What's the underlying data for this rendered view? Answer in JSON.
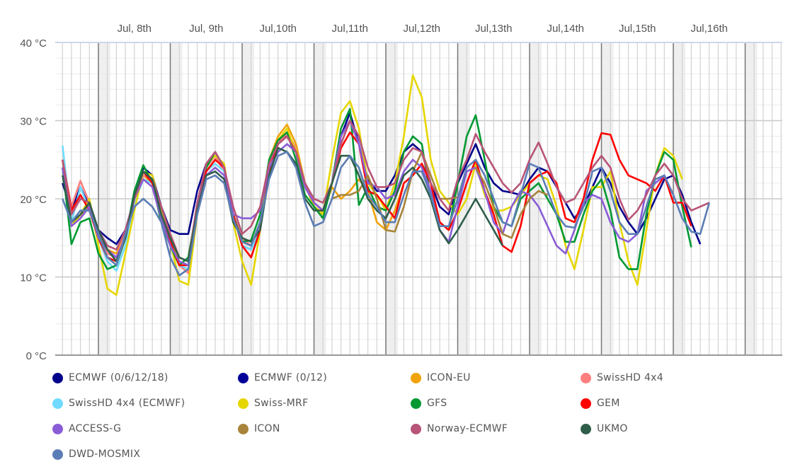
{
  "chart_data": {
    "type": "line",
    "title": "",
    "xlabel": "",
    "ylabel": "",
    "y_unit": "°C",
    "ylim": [
      0,
      40
    ],
    "y_ticks": [
      {
        "value": 0,
        "label": "0 °C"
      },
      {
        "value": 10,
        "label": "10 °C"
      },
      {
        "value": 20,
        "label": "20 °C"
      },
      {
        "value": 30,
        "label": "30 °C"
      },
      {
        "value": 40,
        "label": "40 °C"
      }
    ],
    "x_unit": "hours since Jul 8 00:00",
    "xlim": [
      -12,
      240
    ],
    "x_day_labels": [
      {
        "hour": 12,
        "label": "Jul, 8th"
      },
      {
        "hour": 36,
        "label": "Jul, 9th"
      },
      {
        "hour": 60,
        "label": "Jul,10th"
      },
      {
        "hour": 84,
        "label": "Jul,11th"
      },
      {
        "hour": 108,
        "label": "Jul,12th"
      },
      {
        "hour": 132,
        "label": "Jul,13th"
      },
      {
        "hour": 156,
        "label": "Jul,14th"
      },
      {
        "hour": 180,
        "label": "Jul,15th"
      },
      {
        "hour": 204,
        "label": "Jul,16th"
      }
    ],
    "grid": true,
    "legend_position": "bottom",
    "x": [
      -12,
      -9,
      -6,
      -3,
      0,
      3,
      6,
      9,
      12,
      15,
      18,
      21,
      24,
      27,
      30,
      33,
      36,
      39,
      42,
      45,
      48,
      51,
      54,
      57,
      60,
      63,
      66,
      69,
      72,
      75,
      78,
      81,
      84,
      87,
      90,
      93,
      96,
      99,
      102,
      105,
      108,
      111,
      114,
      117,
      120,
      123,
      126,
      129,
      132,
      135,
      138,
      141,
      144,
      147,
      150,
      153,
      156,
      159,
      162,
      165,
      168,
      171,
      174,
      177,
      180,
      183,
      186,
      189,
      192,
      195,
      198,
      201,
      204,
      207,
      210,
      213,
      216,
      219,
      222,
      225,
      228
    ],
    "series": [
      {
        "name": "ECMWF (0/6/12/18)",
        "color": "#00008b",
        "values": [
          22,
          18.5,
          21.5,
          19,
          16,
          15,
          14.2,
          16,
          20,
          24,
          23,
          19,
          16,
          15.5,
          15.5,
          21,
          24.5,
          25.5,
          23.5,
          18,
          14,
          13.5,
          17,
          24,
          27.5,
          28,
          26,
          22,
          19,
          18,
          22,
          28,
          31,
          27,
          22.5,
          21,
          21,
          23,
          26,
          27,
          26,
          22,
          19,
          18,
          22,
          24.5,
          27,
          24,
          22,
          21,
          20.8,
          20.5,
          22.5,
          24,
          23.5,
          21.5,
          19.5,
          17.5,
          19,
          21.5,
          24,
          22,
          19,
          17,
          15.5,
          17.5,
          20,
          22.5,
          23,
          20.5,
          17,
          14.2,
          null,
          null,
          null,
          null,
          null,
          null,
          null,
          null,
          null
        ]
      },
      {
        "name": "ECMWF (0/12)",
        "color": "#000099",
        "values": [
          null,
          null,
          null,
          null,
          null,
          null,
          null,
          null,
          null,
          null,
          null,
          null,
          null,
          null,
          null,
          null,
          null,
          null,
          null,
          null,
          null,
          null,
          null,
          null,
          null,
          null,
          null,
          null,
          null,
          null,
          null,
          null,
          null,
          null,
          null,
          null,
          null,
          null,
          null,
          null,
          null,
          null,
          null,
          null,
          null,
          null,
          null,
          null,
          null,
          null,
          null,
          null,
          null,
          null,
          null,
          null,
          null,
          null,
          null,
          null,
          null,
          null,
          null,
          null,
          null,
          null,
          null,
          null,
          null,
          null,
          null,
          null,
          null,
          null,
          null,
          null,
          null,
          null,
          null,
          null,
          null
        ]
      },
      {
        "name": "ICON-EU",
        "color": "#f0a30a",
        "values": [
          24,
          17,
          17.5,
          19.5,
          15.5,
          13.5,
          13,
          15.5,
          20,
          23,
          22,
          18,
          15,
          12,
          11.5,
          19,
          24,
          25.5,
          24,
          18,
          14.5,
          14,
          17,
          25,
          28,
          29.5,
          27,
          22,
          19,
          18.2,
          21.5,
          20,
          21,
          22.5,
          21,
          17,
          16,
          18.5,
          22,
          null,
          null,
          null,
          null,
          null,
          null,
          null,
          null,
          null,
          null,
          null,
          null,
          null,
          null,
          null,
          null,
          null,
          null,
          null,
          null,
          null,
          null,
          null,
          null,
          null,
          null,
          null,
          null,
          null,
          null,
          null,
          null,
          null,
          null,
          null,
          null,
          null,
          null,
          null,
          null,
          null,
          null
        ]
      },
      {
        "name": "SwissHD 4x4",
        "color": "#ff7f7f",
        "values": [
          25,
          19,
          22.3,
          19.5,
          15.5,
          13,
          12.5,
          15.5,
          19,
          23,
          22.5,
          18,
          14.5,
          11.5,
          10.5,
          19,
          24,
          25.5,
          23.5,
          18,
          15,
          14,
          16,
          24,
          27,
          28.5,
          26.5,
          null,
          null,
          null,
          null,
          null,
          null,
          null,
          null,
          null,
          null,
          null,
          null,
          null,
          null,
          null,
          null,
          null,
          null,
          null,
          null,
          null,
          null,
          null,
          null,
          null,
          null,
          null,
          null,
          null,
          null,
          null,
          null,
          null,
          null,
          null,
          null,
          null,
          null,
          null,
          null,
          null,
          null,
          null,
          null,
          null,
          null,
          null,
          null,
          null,
          null,
          null,
          null,
          null,
          null
        ]
      },
      {
        "name": "SwissHD 4x4 (ECMWF)",
        "color": "#70dbff",
        "values": [
          26.8,
          17,
          21.5,
          18.5,
          15,
          12,
          10.8,
          14,
          19.5,
          22.5,
          22,
          18,
          14,
          11.5,
          11,
          18.5,
          23.5,
          24.5,
          23.5,
          18,
          14,
          13.5,
          16,
          23.5,
          27,
          28,
          26,
          null,
          null,
          null,
          null,
          null,
          null,
          null,
          null,
          null,
          null,
          null,
          null,
          null,
          null,
          null,
          null,
          null,
          null,
          null,
          null,
          null,
          null,
          null,
          null,
          null,
          null,
          null,
          null,
          null,
          null,
          null,
          null,
          null,
          null,
          null,
          null,
          null,
          null,
          null,
          null,
          null,
          null,
          null,
          null,
          null,
          null,
          null,
          null,
          null,
          null,
          null,
          null,
          null,
          null
        ]
      },
      {
        "name": "Swiss-MRF",
        "color": "#e6d600",
        "values": [
          25,
          16.5,
          18,
          20,
          14,
          8.5,
          7.7,
          13,
          18.5,
          23.5,
          23,
          18.5,
          14.5,
          9.5,
          9,
          18,
          24.5,
          25.5,
          24.5,
          17,
          12,
          9,
          16,
          24.5,
          27.5,
          29,
          26,
          21.8,
          19,
          18,
          25,
          31,
          32.5,
          29,
          22,
          20.5,
          18.5,
          22,
          28,
          35.8,
          33,
          25,
          21,
          19.5,
          18,
          20,
          24.5,
          20.5,
          18.5,
          18.5,
          19,
          20.5,
          22,
          23,
          22.5,
          19,
          14,
          11,
          16,
          21.5,
          21.5,
          23.5,
          17,
          12,
          9,
          16,
          23,
          26.5,
          25.5,
          22.5,
          null,
          null,
          null,
          null,
          null,
          null,
          null,
          null,
          null,
          null,
          null
        ]
      },
      {
        "name": "GFS",
        "color": "#009933",
        "values": [
          24,
          14.2,
          17,
          17.5,
          13,
          11,
          11.5,
          15,
          21,
          24.3,
          22,
          17,
          14,
          11.5,
          12.5,
          19,
          24,
          26,
          24,
          18,
          14.5,
          14.7,
          18,
          25,
          27.5,
          28.5,
          25,
          20.5,
          19,
          17.5,
          22,
          29,
          31.5,
          19.2,
          21.5,
          19,
          18.5,
          21,
          26,
          28,
          27,
          20,
          17,
          16,
          22,
          28,
          30.7,
          25,
          19,
          17,
          16.5,
          20,
          21,
          22,
          20,
          18,
          14.5,
          14.5,
          18,
          21,
          22.5,
          18.5,
          12.5,
          11,
          11,
          18,
          23,
          26,
          25,
          19,
          13.8,
          null,
          null,
          null,
          null,
          null,
          null,
          null,
          null,
          null,
          null
        ]
      },
      {
        "name": "GEM",
        "color": "#ff0000",
        "values": [
          25,
          18.5,
          20.5,
          18.5,
          15,
          12.5,
          12,
          15,
          20,
          23.5,
          22,
          18,
          14.5,
          11.5,
          11.5,
          18.5,
          23.5,
          25,
          24,
          18,
          14,
          12.5,
          16,
          23.5,
          27,
          28,
          26,
          21.5,
          19.5,
          18.5,
          22,
          26.5,
          28.5,
          27,
          21,
          20.5,
          19,
          17.5,
          22,
          23,
          24.5,
          22,
          17,
          16,
          18.5,
          22,
          25,
          21,
          18,
          14,
          13.2,
          16.5,
          22,
          23,
          23.5,
          22,
          17.5,
          17,
          20,
          25,
          28.4,
          28.2,
          25,
          23,
          22.5,
          22,
          21,
          23,
          19.5,
          19.5,
          16.5,
          null,
          null,
          null,
          null,
          null,
          null,
          null,
          null,
          null,
          null
        ]
      },
      {
        "name": "ACCESS-G",
        "color": "#8a5cd6",
        "values": [
          24,
          16.5,
          17.5,
          19,
          15,
          13.5,
          12.5,
          15,
          20,
          22.5,
          21.5,
          17.5,
          14,
          12,
          11.5,
          19,
          23,
          24,
          23,
          18,
          17.5,
          17.5,
          18.5,
          24,
          26,
          27,
          26,
          21.5,
          19.5,
          18.5,
          22,
          28,
          30,
          27,
          22,
          21.5,
          20,
          20.5,
          23.5,
          25,
          24,
          21,
          16,
          14.5,
          19,
          23.5,
          24,
          21,
          17,
          15.5,
          19,
          21,
          20.5,
          19,
          16.5,
          14,
          13,
          16,
          19.5,
          20.5,
          20,
          17,
          15,
          14.5,
          15.5,
          21,
          22,
          23,
          20.5,
          null,
          null,
          null,
          null,
          null,
          null,
          null,
          null,
          null,
          null,
          null,
          null
        ]
      },
      {
        "name": "ICON",
        "color": "#a8843a",
        "values": [
          null,
          null,
          null,
          null,
          null,
          null,
          null,
          null,
          null,
          null,
          null,
          null,
          null,
          null,
          null,
          null,
          null,
          null,
          null,
          null,
          null,
          null,
          null,
          null,
          null,
          null,
          null,
          null,
          null,
          null,
          20,
          20.5,
          20.5,
          21,
          23,
          20,
          16,
          15.8,
          19,
          23.5,
          26,
          23,
          20,
          20,
          20.2,
          null,
          24,
          22,
          19,
          15.5,
          15,
          18,
          20,
          21,
          20.5,
          null,
          null,
          null,
          null,
          null,
          null,
          null,
          null,
          null,
          null,
          null,
          null,
          null,
          null,
          null,
          null,
          null,
          null,
          null,
          null,
          null,
          null,
          null,
          null,
          null,
          null
        ]
      },
      {
        "name": "Norway-ECMWF",
        "color": "#b85478",
        "values": [
          25,
          18,
          20,
          19.5,
          16,
          14,
          13.5,
          16,
          20,
          23.5,
          22.5,
          19,
          15.5,
          12.5,
          12,
          19.5,
          24.5,
          26,
          24,
          19,
          15.5,
          16.5,
          19,
          24.5,
          27,
          28,
          26,
          22,
          20,
          19.5,
          22,
          27,
          30,
          28,
          24,
          21.5,
          21.5,
          22,
          25,
          26.5,
          26,
          22,
          20,
          18.5,
          22.5,
          25,
          28.3,
          26,
          24,
          22,
          20.8,
          22,
          25,
          27.2,
          24.5,
          21.5,
          19.5,
          20,
          22,
          24,
          25.5,
          24,
          20,
          17.3,
          18.5,
          20.5,
          23,
          24.5,
          23,
          20,
          18.5,
          19,
          19.5,
          null,
          null,
          null,
          null,
          null,
          null,
          null,
          null
        ]
      },
      {
        "name": "UKMO",
        "color": "#2e5e4a",
        "values": [
          23,
          17,
          18,
          19.5,
          16,
          13.5,
          12,
          15,
          20.5,
          23.5,
          22.5,
          18,
          15,
          12.5,
          12,
          18.5,
          23,
          23.5,
          22.5,
          17,
          15,
          14.5,
          16,
          23,
          26.5,
          26,
          24.5,
          20,
          18.5,
          18.5,
          22,
          25.5,
          25.5,
          23,
          20,
          18.5,
          17.5,
          20,
          23,
          24,
          22.5,
          20,
          16,
          14.3,
          16,
          18,
          20,
          18,
          16,
          14,
          null,
          null,
          null,
          null,
          null,
          null,
          null,
          null,
          null,
          null,
          null,
          null,
          null,
          null,
          null,
          null,
          null,
          null,
          null,
          null,
          null,
          null,
          null,
          null,
          null,
          null,
          null,
          null,
          null,
          null,
          null
        ]
      },
      {
        "name": "DWD-MOSMIX",
        "color": "#5b7db5",
        "values": [
          20,
          17,
          18.5,
          18.5,
          15.5,
          12.5,
          11.5,
          15.5,
          19,
          20,
          19,
          17,
          12.5,
          10.2,
          11,
          18,
          22.5,
          23,
          22,
          17.5,
          14.5,
          14,
          17,
          22.5,
          25.5,
          26,
          24,
          19.5,
          16.5,
          17,
          20,
          24,
          25.5,
          24,
          20.5,
          19,
          17,
          17,
          20.5,
          23.5,
          23.5,
          20.5,
          16.5,
          16.5,
          20,
          24,
          25,
          23,
          20,
          17,
          16.5,
          20.5,
          24.5,
          24,
          21,
          18,
          16.5,
          16.3,
          19,
          23.5,
          24,
          21,
          17,
          15.5,
          15.5,
          19,
          22.5,
          23,
          20.5,
          17.5,
          15.8,
          15.5,
          19.5,
          null,
          null,
          null,
          null,
          null,
          null,
          null,
          null
        ]
      }
    ]
  }
}
